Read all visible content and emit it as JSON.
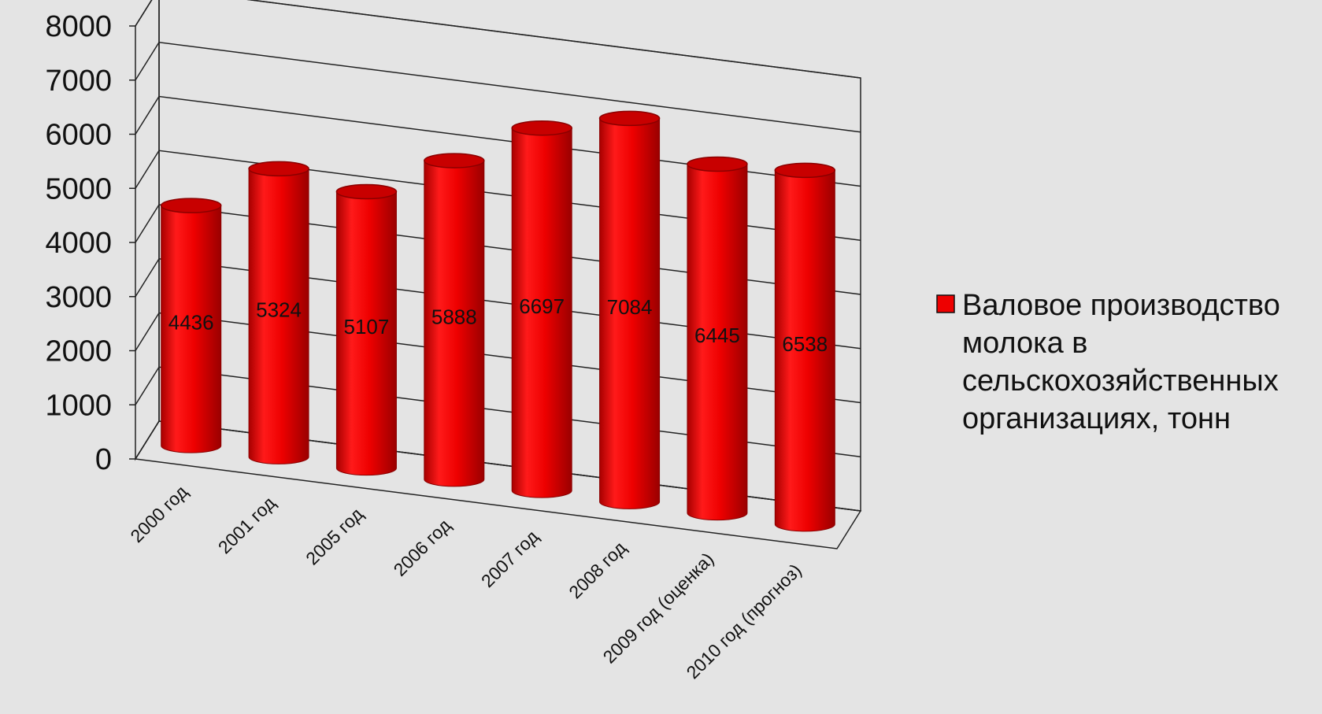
{
  "chart_data": {
    "type": "bar",
    "style": "3d-cylinder",
    "categories": [
      "2000 год",
      "2001 год",
      "2005 год",
      "2006 год",
      "2007 год",
      "2008 год",
      "2009 год (оценка)",
      "2010 год (прогноз)"
    ],
    "series": [
      {
        "name": "Валовое производство молока в сельскохозяйственных организациях, тонн",
        "values": [
          4436,
          5324,
          5107,
          5888,
          6697,
          7084,
          6445,
          6538
        ],
        "color": "#ee0000"
      }
    ],
    "data_labels": [
      "4436",
      "5324",
      "5107",
      "5888",
      "6697",
      "7084",
      "6445",
      "6538"
    ],
    "y_ticks": [
      "0",
      "1000",
      "2000",
      "3000",
      "4000",
      "5000",
      "6000",
      "7000",
      "8000"
    ],
    "ylim": [
      0,
      8000
    ],
    "grid": true,
    "legend_position": "right",
    "legend_lines": [
      "Валовое производство",
      "молока в",
      "сельскохозяйственных",
      "организациях, тонн"
    ]
  },
  "colors": {
    "background": "#e4e4e4",
    "bar": "#ee0000",
    "bar_dark": "#8a0000",
    "bar_top": "#c80000",
    "gridline": "#222222"
  }
}
